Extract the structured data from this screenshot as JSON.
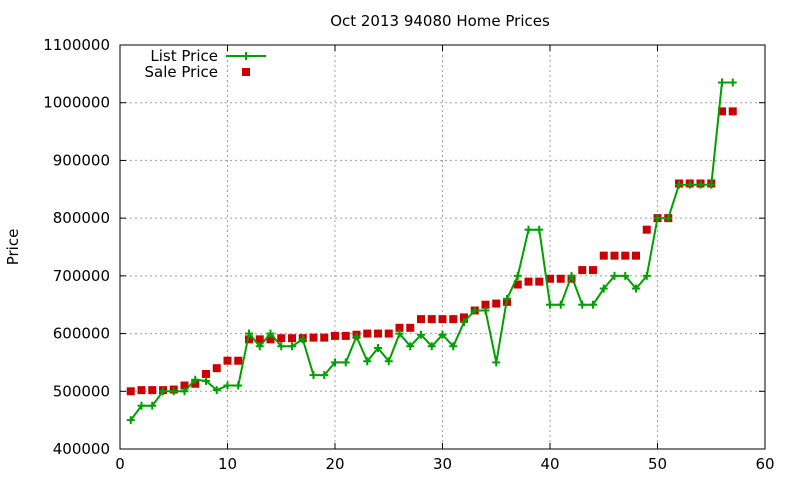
{
  "chart_data": {
    "type": "line",
    "title": "Oct 2013 94080 Home Prices",
    "xlabel": "",
    "ylabel": "Price",
    "xlim": [
      0,
      60
    ],
    "ylim": [
      400000,
      1100000
    ],
    "x_ticks": [
      0,
      10,
      20,
      30,
      40,
      50,
      60
    ],
    "y_ticks": [
      400000,
      500000,
      600000,
      700000,
      800000,
      900000,
      1000000,
      1100000
    ],
    "grid": true,
    "legend_position": "top-left",
    "series": [
      {
        "name": "List Price",
        "style": "linespoints",
        "marker": "plus",
        "color": "#00a000",
        "x": [
          1,
          2,
          3,
          4,
          5,
          6,
          7,
          8,
          9,
          10,
          11,
          12,
          13,
          14,
          15,
          16,
          17,
          18,
          19,
          20,
          21,
          22,
          23,
          24,
          25,
          26,
          27,
          28,
          29,
          30,
          31,
          32,
          33,
          34,
          35,
          36,
          37,
          38,
          39,
          40,
          41,
          42,
          43,
          44,
          45,
          46,
          47,
          48,
          49,
          50,
          51,
          52,
          53,
          54,
          55,
          56,
          57
        ],
        "y": [
          450000,
          475000,
          475000,
          500000,
          500000,
          500000,
          520000,
          518000,
          502000,
          510000,
          510000,
          600000,
          578000,
          600000,
          578000,
          578000,
          590000,
          528000,
          528000,
          550000,
          550000,
          595000,
          552000,
          575000,
          552000,
          600000,
          578000,
          598000,
          578000,
          598000,
          578000,
          620000,
          640000,
          640000,
          550000,
          660000,
          700000,
          780000,
          780000,
          650000,
          650000,
          700000,
          650000,
          650000,
          678000,
          700000,
          700000,
          678000,
          700000,
          800000,
          800000,
          858000,
          858000,
          858000,
          858000,
          1035000,
          1035000
        ]
      },
      {
        "name": "Sale Price",
        "style": "points",
        "marker": "square",
        "color": "#cc0000",
        "x": [
          1,
          2,
          3,
          4,
          5,
          6,
          7,
          8,
          9,
          10,
          11,
          12,
          13,
          14,
          15,
          16,
          17,
          18,
          19,
          20,
          21,
          22,
          23,
          24,
          25,
          26,
          27,
          28,
          29,
          30,
          31,
          32,
          33,
          34,
          35,
          36,
          37,
          38,
          39,
          40,
          41,
          42,
          43,
          44,
          45,
          46,
          47,
          48,
          49,
          50,
          51,
          52,
          53,
          54,
          55,
          56,
          57
        ],
        "y": [
          500000,
          502000,
          502000,
          502000,
          503000,
          510000,
          513000,
          530000,
          540000,
          553000,
          553000,
          590000,
          590000,
          590000,
          592000,
          592000,
          592000,
          593000,
          593000,
          596000,
          596000,
          598000,
          600000,
          600000,
          600000,
          610000,
          610000,
          625000,
          625000,
          625000,
          625000,
          628000,
          640000,
          650000,
          652000,
          655000,
          685000,
          690000,
          690000,
          695000,
          695000,
          695000,
          710000,
          710000,
          735000,
          735000,
          735000,
          735000,
          780000,
          800000,
          800000,
          860000,
          860000,
          860000,
          860000,
          985000,
          985000
        ]
      }
    ]
  }
}
